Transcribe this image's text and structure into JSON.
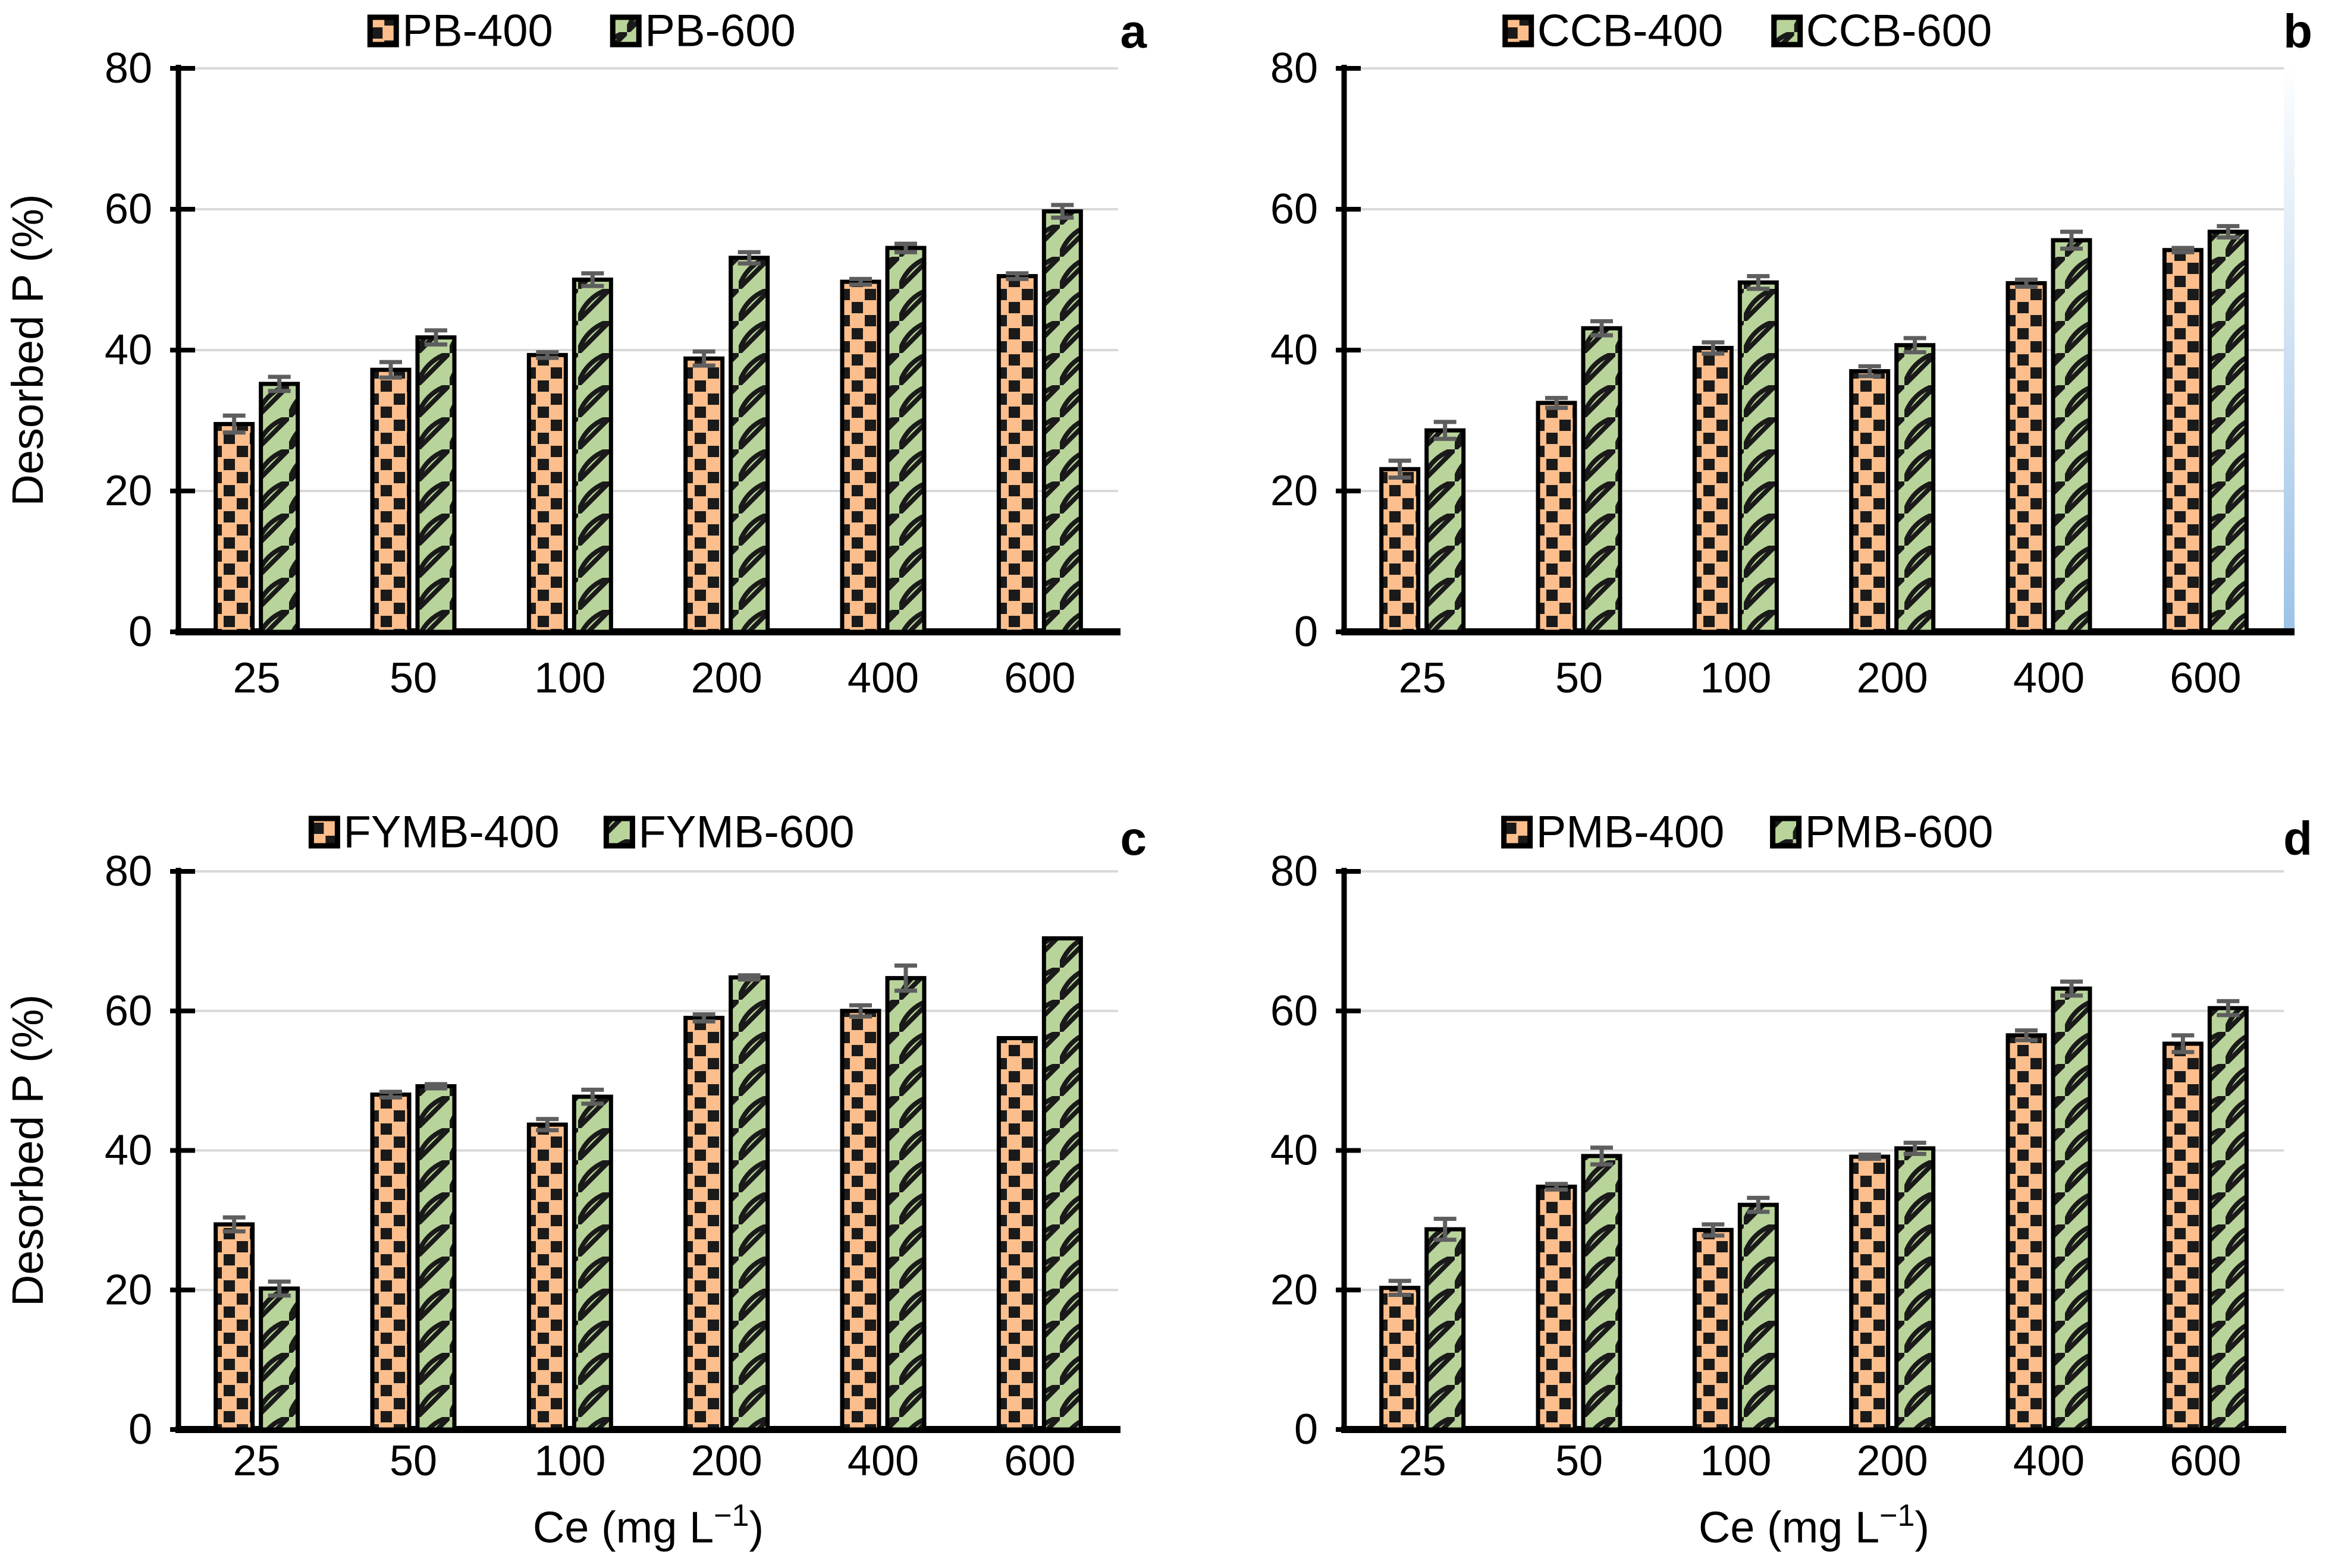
{
  "figure": {
    "background": "#FFFFFF",
    "colors": {
      "bar400_fill": "#FBBE8C",
      "bar600_fill": "#B9D49A",
      "pattern_dark": "#1A1A1A",
      "bar_stroke": "#000000",
      "grid": "#D9D9D9",
      "error_bar": "#5E5E5E",
      "axis": "#000000",
      "text": "#000000",
      "strip_top": "#FDFEFF",
      "strip_bottom": "#9DC3E6"
    },
    "y_axis": {
      "title": "Desorbed P (%)",
      "min": 0,
      "max": 80,
      "step": 20,
      "tick_labels": [
        "0",
        "20",
        "40",
        "60",
        "80"
      ]
    },
    "x_axis": {
      "title": "Ce (mg L⁻¹)",
      "title_parts": [
        "Ce (mg L",
        "−1",
        ")"
      ]
    }
  },
  "chart_data": [
    {
      "type": "bar",
      "panel_letter": "a",
      "title": "",
      "legend": [
        "PB-400",
        "PB-600"
      ],
      "legend_position": "top",
      "categories": [
        "25",
        "50",
        "100",
        "200",
        "400",
        "600"
      ],
      "series": [
        {
          "name": "PB-400",
          "values": [
            29.5,
            37.2,
            39.3,
            38.8,
            49.7,
            50.5
          ],
          "errors": [
            1.2,
            1.1,
            0.4,
            1.0,
            0.4,
            0.4
          ]
        },
        {
          "name": "PB-600",
          "values": [
            35.2,
            41.8,
            50.0,
            53.1,
            54.5,
            59.7
          ],
          "errors": [
            1.0,
            1.0,
            0.9,
            0.8,
            0.6,
            0.9
          ]
        }
      ],
      "ylabel": "Desorbed P (%)",
      "xlabel": "",
      "ylim": [
        0,
        80
      ],
      "grid": true,
      "row": 0,
      "show_ylabel": true,
      "show_xlabel": false,
      "right_strip": false
    },
    {
      "type": "bar",
      "panel_letter": "b",
      "title": "",
      "legend": [
        "CCB-400",
        "CCB-600"
      ],
      "legend_position": "top",
      "categories": [
        "25",
        "50",
        "100",
        "200",
        "400",
        "600"
      ],
      "series": [
        {
          "name": "CCB-400",
          "values": [
            23.1,
            32.5,
            40.3,
            37.0,
            49.5,
            54.2
          ],
          "errors": [
            1.2,
            0.7,
            0.8,
            0.7,
            0.5,
            0.3
          ]
        },
        {
          "name": "CCB-600",
          "values": [
            28.6,
            43.1,
            49.6,
            40.7,
            55.6,
            56.8
          ],
          "errors": [
            1.2,
            1.0,
            0.9,
            1.0,
            1.2,
            0.8
          ]
        }
      ],
      "ylabel": "",
      "xlabel": "",
      "ylim": [
        0,
        80
      ],
      "grid": true,
      "row": 0,
      "show_ylabel": false,
      "show_xlabel": false,
      "right_strip": true
    },
    {
      "type": "bar",
      "panel_letter": "c",
      "title": "",
      "legend": [
        "FYMB-400",
        "FYMB-600"
      ],
      "legend_position": "top",
      "categories": [
        "25",
        "50",
        "100",
        "200",
        "400",
        "600"
      ],
      "series": [
        {
          "name": "FYMB-400",
          "values": [
            29.4,
            48.0,
            43.7,
            59.0,
            60.0,
            56.1
          ],
          "errors": [
            1.0,
            0.4,
            0.8,
            0.5,
            0.8,
            0
          ]
        },
        {
          "name": "FYMB-600",
          "values": [
            20.2,
            49.2,
            47.7,
            64.8,
            64.7,
            70.4
          ],
          "errors": [
            1.0,
            0.3,
            1.0,
            0.3,
            1.8,
            0
          ]
        }
      ],
      "ylabel": "Desorbed P (%)",
      "xlabel": "Ce (mg L⁻¹)",
      "ylim": [
        0,
        80
      ],
      "grid": true,
      "row": 1,
      "show_ylabel": true,
      "show_xlabel": true,
      "right_strip": false
    },
    {
      "type": "bar",
      "panel_letter": "d",
      "title": "",
      "legend": [
        "PMB-400",
        "PMB-600"
      ],
      "legend_position": "top",
      "categories": [
        "25",
        "50",
        "100",
        "200",
        "400",
        "600"
      ],
      "series": [
        {
          "name": "PMB-400",
          "values": [
            20.3,
            34.8,
            28.6,
            39.1,
            56.5,
            55.3
          ],
          "errors": [
            1.0,
            0.4,
            0.8,
            0.3,
            0.7,
            1.2
          ]
        },
        {
          "name": "PMB-600",
          "values": [
            28.7,
            39.2,
            32.2,
            40.3,
            63.2,
            60.4
          ],
          "errors": [
            1.5,
            1.2,
            1.0,
            0.8,
            1.0,
            1.0
          ]
        }
      ],
      "ylabel": "",
      "xlabel": "Ce (mg L⁻¹)",
      "ylim": [
        0,
        80
      ],
      "grid": true,
      "row": 1,
      "show_ylabel": false,
      "show_xlabel": true,
      "right_strip": false
    }
  ]
}
